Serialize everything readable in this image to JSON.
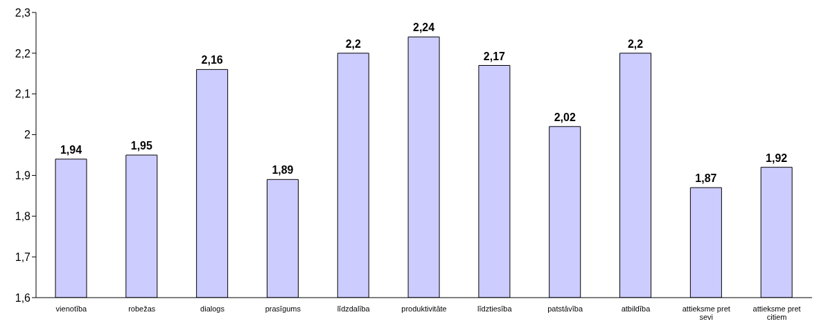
{
  "chart_data": {
    "type": "bar",
    "categories": [
      "vienotība",
      "robežas",
      "dialogs",
      "prasīgums",
      "līdzdalība",
      "produktivitāte",
      "līdztiesība",
      "patstāvība",
      "atbildība",
      "attieksme pret sevi",
      "attieksme pret citiem"
    ],
    "values": [
      1.94,
      1.95,
      2.16,
      1.89,
      2.2,
      2.24,
      2.17,
      2.02,
      2.2,
      1.87,
      1.92
    ],
    "value_labels": [
      "1,94",
      "1,95",
      "2,16",
      "1,89",
      "2,2",
      "2,24",
      "2,17",
      "2,02",
      "2,2",
      "1,87",
      "1,92"
    ],
    "color": "#ccccff",
    "ylim": [
      1.6,
      2.3
    ],
    "yticks": [
      {
        "value": 1.6,
        "label": "1,6"
      },
      {
        "value": 1.7,
        "label": "1,7"
      },
      {
        "value": 1.8,
        "label": "1,8"
      },
      {
        "value": 1.9,
        "label": "1,9"
      },
      {
        "value": 2,
        "label": "2"
      },
      {
        "value": 2.1,
        "label": "2,1"
      },
      {
        "value": 2.2,
        "label": "2,2"
      },
      {
        "value": 2.3,
        "label": "2,3"
      }
    ],
    "grid": false,
    "legend": false
  }
}
